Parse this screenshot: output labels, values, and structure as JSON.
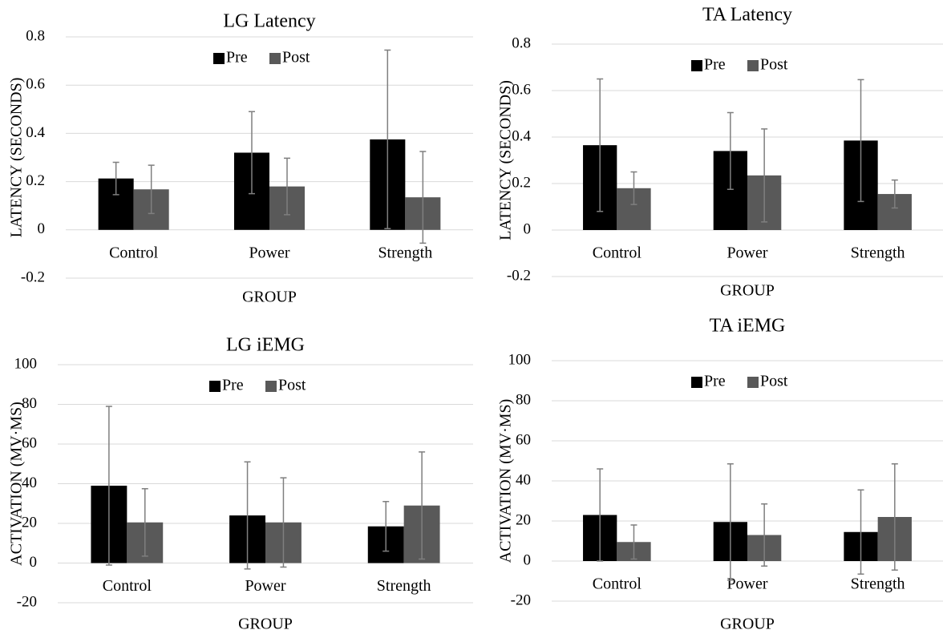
{
  "chart_data": [
    {
      "type": "bar",
      "title": "LG Latency",
      "y_label": "LATENCY (SECONDS)",
      "x_label": "GROUP",
      "categories": [
        "Control",
        "Power",
        "Strength"
      ],
      "series": [
        {
          "name": "Pre",
          "color": "#000000",
          "values": [
            0.213,
            0.32,
            0.375
          ],
          "errors": [
            0.067,
            0.17,
            0.37
          ]
        },
        {
          "name": "Post",
          "color": "#595959",
          "values": [
            0.168,
            0.18,
            0.135
          ],
          "errors": [
            0.1,
            0.117,
            0.19
          ]
        }
      ],
      "ylim": [
        -0.2,
        0.8
      ],
      "yticks": [
        -0.2,
        0,
        0.2,
        0.4,
        0.6,
        0.8
      ],
      "grid": true,
      "legend": "top",
      "error_color": "#7f7f7f"
    },
    {
      "type": "bar",
      "title": "TA Latency",
      "y_label": "LATENCY (SECONDS)",
      "x_label": "GROUP",
      "categories": [
        "Control",
        "Power",
        "Strength"
      ],
      "series": [
        {
          "name": "Pre",
          "color": "#000000",
          "values": [
            0.365,
            0.34,
            0.385
          ],
          "errors": [
            0.285,
            0.165,
            0.262
          ]
        },
        {
          "name": "Post",
          "color": "#595959",
          "values": [
            0.18,
            0.235,
            0.155
          ],
          "errors": [
            0.07,
            0.2,
            0.06
          ]
        }
      ],
      "ylim": [
        -0.2,
        0.8
      ],
      "yticks": [
        -0.2,
        0,
        0.2,
        0.4,
        0.6,
        0.8
      ],
      "grid": true,
      "legend": "top",
      "error_color": "#7f7f7f"
    },
    {
      "type": "bar",
      "title": "LG iEMG",
      "y_label": "ACTIVATION (MV·MS)",
      "x_label": "GROUP",
      "categories": [
        "Control",
        "Power",
        "Strength"
      ],
      "series": [
        {
          "name": "Pre",
          "color": "#000000",
          "values": [
            39,
            24,
            18.5
          ],
          "errors": [
            40,
            27,
            12.5
          ]
        },
        {
          "name": "Post",
          "color": "#595959",
          "values": [
            20.5,
            20.5,
            29
          ],
          "errors": [
            17,
            22.5,
            27
          ]
        }
      ],
      "ylim": [
        -20,
        100
      ],
      "yticks": [
        -20,
        0,
        20,
        40,
        60,
        80,
        100
      ],
      "grid": true,
      "legend": "top",
      "error_color": "#7f7f7f"
    },
    {
      "type": "bar",
      "title": "TA iEMG",
      "y_label": "ACTIVATION (MV·MS)",
      "x_label": "GROUP",
      "categories": [
        "Control",
        "Power",
        "Strength"
      ],
      "series": [
        {
          "name": "Pre",
          "color": "#000000",
          "values": [
            23,
            19.5,
            14.5
          ],
          "errors": [
            23,
            29,
            21
          ]
        },
        {
          "name": "Post",
          "color": "#595959",
          "values": [
            9.5,
            13,
            22
          ],
          "errors": [
            8.5,
            15.5,
            26.5
          ]
        }
      ],
      "ylim": [
        -20,
        100
      ],
      "yticks": [
        -20,
        0,
        20,
        40,
        60,
        80,
        100
      ],
      "grid": true,
      "legend": "top",
      "error_color": "#7f7f7f"
    }
  ]
}
